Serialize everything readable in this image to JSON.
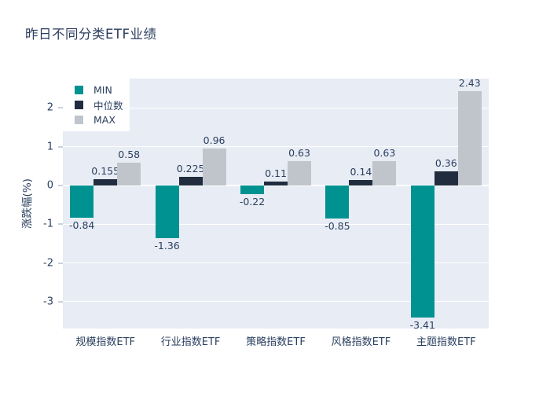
{
  "title": "昨日不同分类ETF业绩",
  "colors": {
    "plot_background": "#e8ecf4",
    "gridline": "#ffffff",
    "text": "#2a3f5f",
    "title_text": "#2b3c5e",
    "min_series": "#009291",
    "median_series": "#212d3f",
    "max_series": "#c0c5cc"
  },
  "legend": {
    "items": [
      "MIN",
      "中位数",
      "MAX"
    ]
  },
  "chart_data": {
    "type": "bar",
    "title": "昨日不同分类ETF业绩",
    "xlabel": "",
    "ylabel": "涨跌幅(%)",
    "categories": [
      "规模指数ETF",
      "行业指数ETF",
      "策略指数ETF",
      "风格指数ETF",
      "主题指数ETF"
    ],
    "series": [
      {
        "name": "MIN",
        "color": "#009291",
        "values": [
          -0.84,
          -1.36,
          -0.22,
          -0.85,
          -3.41
        ],
        "labels": [
          "-0.84",
          "-1.36",
          "-0.22",
          "-0.85",
          "-3.41"
        ]
      },
      {
        "name": "中位数",
        "color": "#212d3f",
        "values": [
          0.155,
          0.225,
          0.11,
          0.14,
          0.36
        ],
        "labels": [
          "0.155",
          "0.225",
          "0.11",
          "0.14",
          "0.36"
        ]
      },
      {
        "name": "MAX",
        "color": "#c0c5cc",
        "values": [
          0.58,
          0.96,
          0.63,
          0.63,
          2.43
        ],
        "labels": [
          "0.58",
          "0.96",
          "0.63",
          "0.63",
          "2.43"
        ]
      }
    ],
    "yticks": [
      2,
      1,
      0,
      -1,
      -2,
      -3
    ],
    "ylim": [
      -3.69,
      2.76
    ],
    "grid": true,
    "legend_position": "top-left-inside"
  }
}
